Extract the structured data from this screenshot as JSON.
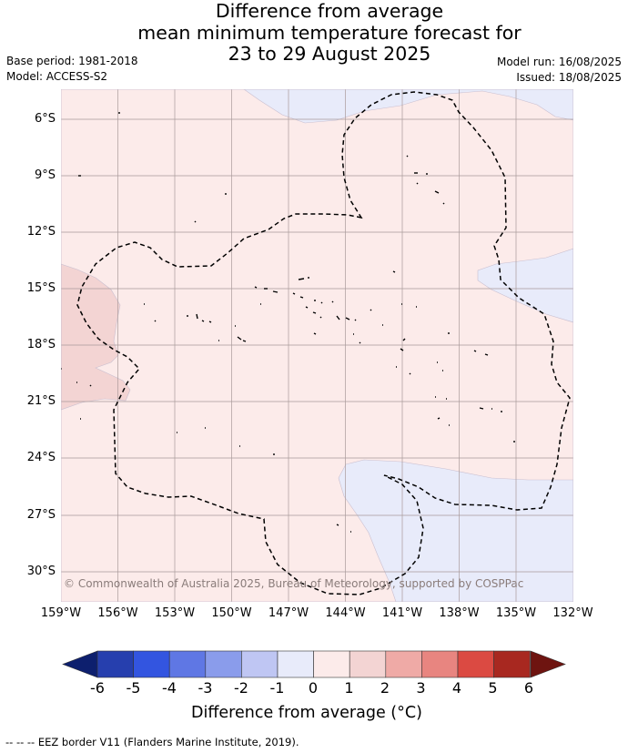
{
  "title": {
    "line1": "Difference from average",
    "line2": "mean minimum temperature forecast for",
    "line3": "23 to 29 August 2025"
  },
  "meta": {
    "base_period": "Base period: 1981-2018",
    "model": "Model: ACCESS-S2",
    "model_run": "Model run: 16/08/2025",
    "issued": "Issued: 18/08/2025"
  },
  "map": {
    "lat_labels": [
      "6°S",
      "9°S",
      "12°S",
      "15°S",
      "18°S",
      "21°S",
      "24°S",
      "27°S",
      "30°S"
    ],
    "lon_labels": [
      "159°W",
      "156°W",
      "153°W",
      "150°W",
      "147°W",
      "144°W",
      "141°W",
      "138°W",
      "135°W",
      "132°W"
    ],
    "lon_range": [
      -159,
      -132
    ],
    "lat_range": [
      -4.4,
      -31.5
    ],
    "grid": true,
    "background_class": "0 to 1",
    "copyright": "© Commonwealth of Australia 2025, Bureau of Meteorology, supported by COSPPac"
  },
  "colorbar": {
    "ticks": [
      "-6",
      "-5",
      "-4",
      "-3",
      "-2",
      "-1",
      "0",
      "1",
      "2",
      "3",
      "4",
      "5",
      "6"
    ],
    "colors": [
      "#0d1f6e",
      "#263fae",
      "#3355e0",
      "#5f77e4",
      "#8a9ceb",
      "#bfc6f3",
      "#e8ebfa",
      "#fcebea",
      "#f3d4d3",
      "#efaaa6",
      "#e88580",
      "#db4a42",
      "#a82820",
      "#6e1410"
    ],
    "title": "Difference from average (°C)"
  },
  "footer": "-- -- -- EEZ border V11 (Flanders Marine Institute, 2019)."
}
